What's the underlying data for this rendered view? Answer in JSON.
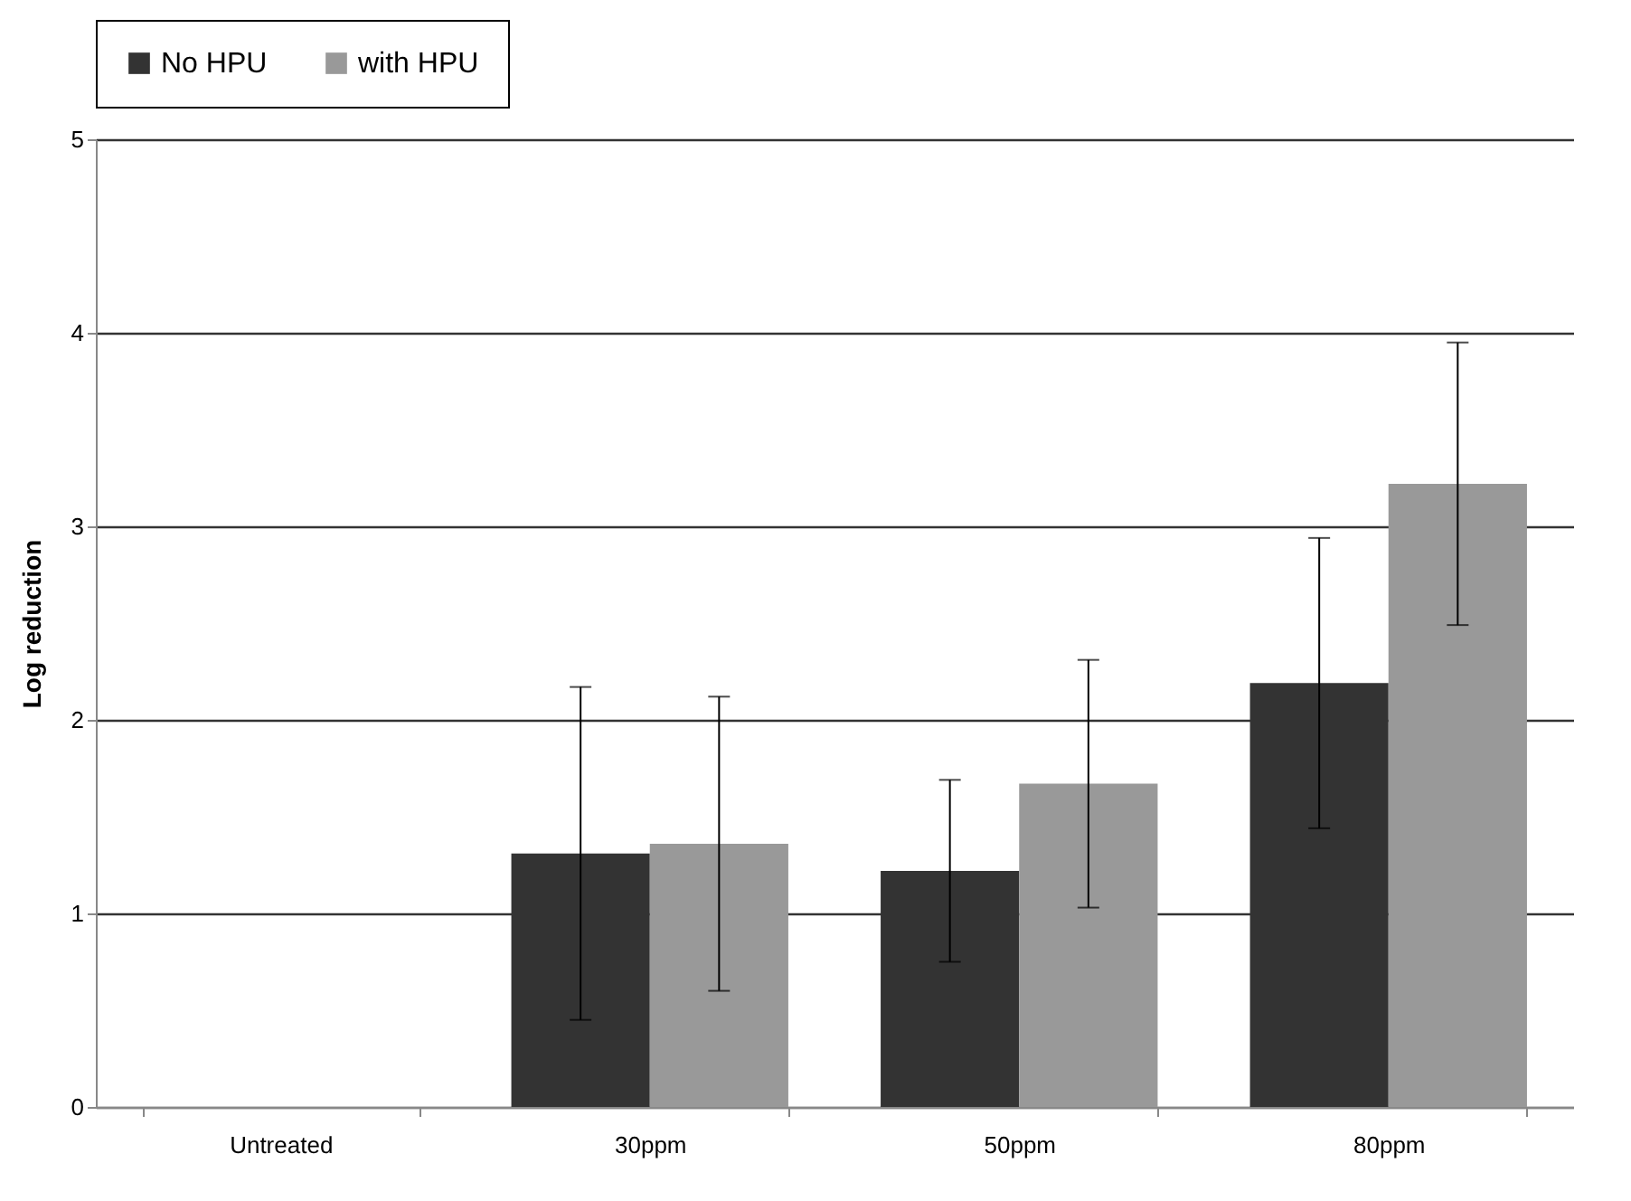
{
  "chart_data": {
    "type": "bar",
    "ylabel": "Log reduction",
    "categories": [
      "Untreated",
      "30ppm",
      "50ppm",
      "80ppm"
    ],
    "series": [
      {
        "name": "No HPU",
        "color": "#333333",
        "values": [
          0,
          1.31,
          1.22,
          2.19
        ],
        "errors": [
          null,
          0.86,
          0.47,
          0.75
        ]
      },
      {
        "name": "with HPU",
        "color": "#999999",
        "values": [
          0,
          1.36,
          1.67,
          3.22
        ],
        "errors": [
          null,
          0.76,
          0.64,
          0.73
        ]
      }
    ],
    "ylim": [
      0,
      5
    ],
    "yticks": [
      0,
      1,
      2,
      3,
      4,
      5
    ],
    "grid": "y",
    "legend": "top"
  }
}
